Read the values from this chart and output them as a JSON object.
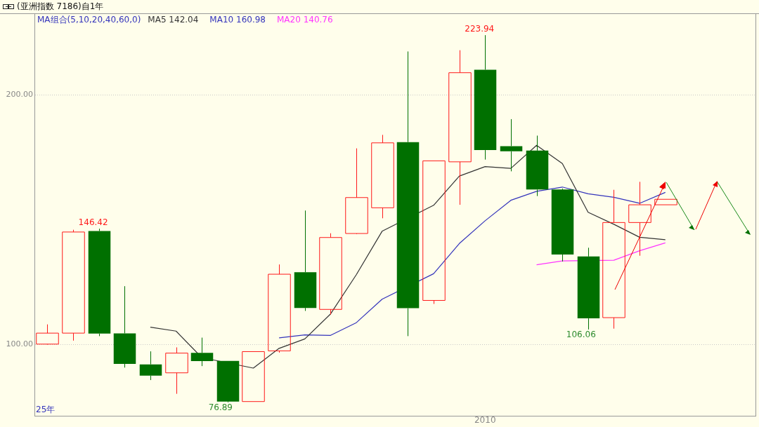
{
  "chart_data": {
    "type": "candlestick",
    "title": "(亚洲指数 7186)自1年",
    "legend_title": "MA组合(5,10,20,40,60,0)",
    "legend": "top left",
    "grid": "y",
    "categories": [
      null,
      null,
      null,
      null,
      null,
      null,
      null,
      null,
      null,
      null,
      null,
      null,
      null,
      null,
      null,
      null,
      null,
      "2010",
      null,
      null,
      null,
      null,
      null,
      null,
      null
    ],
    "ohlc": [
      [
        100.2,
        108.1,
        100.0,
        104.6
      ],
      [
        104.6,
        146.0,
        101.6,
        145.1
      ],
      [
        145.5,
        146.42,
        103.4,
        104.4
      ],
      [
        104.5,
        123.4,
        90.8,
        92.3
      ],
      [
        92.1,
        97.3,
        85.8,
        87.6
      ],
      [
        88.7,
        98.9,
        80.3,
        96.6
      ],
      [
        96.7,
        102.8,
        91.4,
        93.4
      ],
      [
        93.5,
        93.5,
        76.89,
        77.2
      ],
      [
        77.2,
        97.2,
        77.2,
        97.2
      ],
      [
        97.5,
        132.1,
        96.8,
        128.2
      ],
      [
        129.0,
        153.7,
        113.5,
        114.7
      ],
      [
        114.1,
        144.6,
        112.1,
        142.9
      ],
      [
        144.5,
        178.6,
        144.3,
        158.9
      ],
      [
        154.8,
        184.0,
        150.6,
        180.8
      ],
      [
        181.1,
        217.4,
        103.4,
        114.6
      ],
      [
        117.7,
        173.6,
        116.3,
        173.6
      ],
      [
        173.2,
        217.9,
        156.0,
        208.9
      ],
      [
        210.1,
        223.94,
        174.1,
        177.9
      ],
      [
        179.5,
        190.3,
        169.4,
        177.4
      ],
      [
        177.7,
        183.7,
        159.5,
        162.1
      ],
      [
        162.1,
        162.5,
        133.3,
        136.1
      ],
      [
        135.3,
        138.8,
        106.06,
        110.5
      ],
      [
        110.8,
        162.0,
        106.4,
        148.9
      ],
      [
        148.9,
        165.2,
        135.6,
        156.0
      ],
      [
        156.0,
        158.2,
        156.0,
        158.2
      ]
    ],
    "series": [
      {
        "type": "line",
        "name": "MA5 142.04",
        "color": "#333333",
        "values": [
          null,
          null,
          null,
          null,
          107.0,
          105.4,
          94.8,
          null,
          90.6,
          98.5,
          102.3,
          112.3,
          128.0,
          145.4,
          null,
          155.8,
          167.5,
          171.3,
          170.6,
          179.8,
          172.5,
          153.0,
          148.2,
          143.0,
          142.04
        ]
      },
      {
        "type": "line",
        "name": "MA10 160.98",
        "color": "#3333bb",
        "values": [
          null,
          null,
          null,
          null,
          null,
          null,
          null,
          null,
          null,
          102.7,
          103.9,
          103.7,
          108.8,
          118.2,
          null,
          128.4,
          140.5,
          149.6,
          157.8,
          161.4,
          163.1,
          160.4,
          159.0,
          156.6,
          160.98
        ]
      },
      {
        "type": "line",
        "name": "MA20 140.76",
        "color": "#ff33ff",
        "values": [
          null,
          null,
          null,
          null,
          null,
          null,
          null,
          null,
          null,
          null,
          null,
          null,
          null,
          null,
          null,
          null,
          null,
          null,
          null,
          132.0,
          133.5,
          null,
          133.8,
          137.6,
          140.76
        ]
      }
    ],
    "ylim": [
      71.5,
      232.4
    ],
    "yticks": [
      {
        "value": 100,
        "label": "100.00"
      },
      {
        "value": 200,
        "label": "200.00"
      }
    ],
    "annotations": [
      "146.42",
      "223.94",
      "76.89",
      "106.06",
      "25年"
    ]
  }
}
